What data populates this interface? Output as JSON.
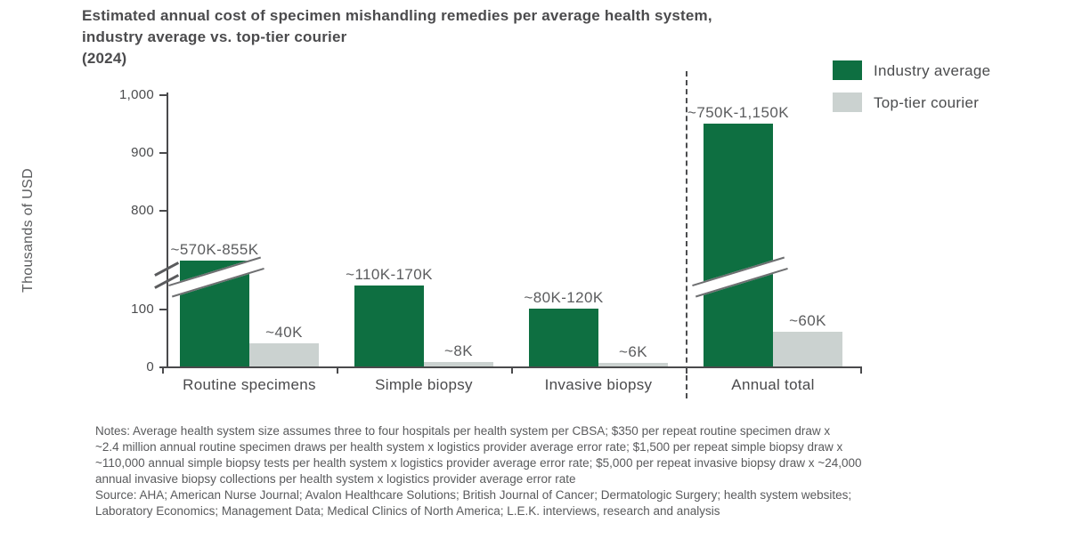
{
  "title": "Estimated annual cost of specimen mishandling remedies per average health system,\nindustry average vs. top-tier courier\n(2024)",
  "legend": {
    "items": [
      {
        "label": "Industry average",
        "color": "#0e6f41"
      },
      {
        "label": "Top-tier courier",
        "color": "#cbd2d0"
      }
    ]
  },
  "y_axis": {
    "title": "Thousands of USD",
    "tick_values": [
      0,
      100,
      800,
      900,
      1000
    ],
    "tick_labels": [
      "0",
      "100",
      "800",
      "900",
      "1,000"
    ],
    "break_between": [
      100,
      800
    ]
  },
  "chart_data": {
    "type": "bar",
    "title": "Estimated annual cost of specimen mishandling remedies per average health system, industry average vs. top-tier courier (2024)",
    "ylabel": "Thousands of USD",
    "ylim": [
      0,
      1000
    ],
    "grid": false,
    "legend_position": "top-right",
    "axis_break": true,
    "categories": [
      "Routine specimens",
      "Simple biopsy",
      "Invasive biopsy",
      "Annual total"
    ],
    "separator_before_index": 3,
    "series": [
      {
        "name": "Industry average",
        "color": "#0e6f41",
        "points": [
          {
            "label": "~570K-855K",
            "low": 570,
            "high": 855,
            "draw_value": 712.5,
            "crosses_axis_break": true
          },
          {
            "label": "~110K-170K",
            "low": 110,
            "high": 170,
            "draw_value": 140,
            "crosses_axis_break": false
          },
          {
            "label": "~80K-120K",
            "low": 80,
            "high": 120,
            "draw_value": 100,
            "crosses_axis_break": false
          },
          {
            "label": "~750K-1,150K",
            "low": 750,
            "high": 1150,
            "draw_value": 950,
            "crosses_axis_break": true
          }
        ]
      },
      {
        "name": "Top-tier courier",
        "color": "#cbd2d0",
        "points": [
          {
            "label": "~40K",
            "draw_value": 40,
            "crosses_axis_break": false
          },
          {
            "label": "~8K",
            "draw_value": 8,
            "crosses_axis_break": false
          },
          {
            "label": "~6K",
            "draw_value": 6,
            "crosses_axis_break": false
          },
          {
            "label": "~60K",
            "draw_value": 60,
            "crosses_axis_break": false
          }
        ]
      }
    ]
  },
  "notes": "Notes: Average health system size assumes three to four hospitals per health system per CBSA; $350 per repeat routine specimen draw x\n~2.4 million annual routine specimen draws per health system x logistics provider average error rate; $1,500 per repeat simple biopsy draw x\n~110,000 annual simple biopsy tests per health system x logistics provider average error rate; $5,000 per repeat invasive biopsy draw x ~24,000\nannual invasive biopsy collections per health system x logistics provider average error rate",
  "source": "Source: AHA; American Nurse Journal; Avalon Healthcare Solutions; British Journal of Cancer; Dermatologic Surgery; health system websites;\nLaboratory Economics; Management Data; Medical Clinics of North America; L.E.K. interviews, research and analysis"
}
